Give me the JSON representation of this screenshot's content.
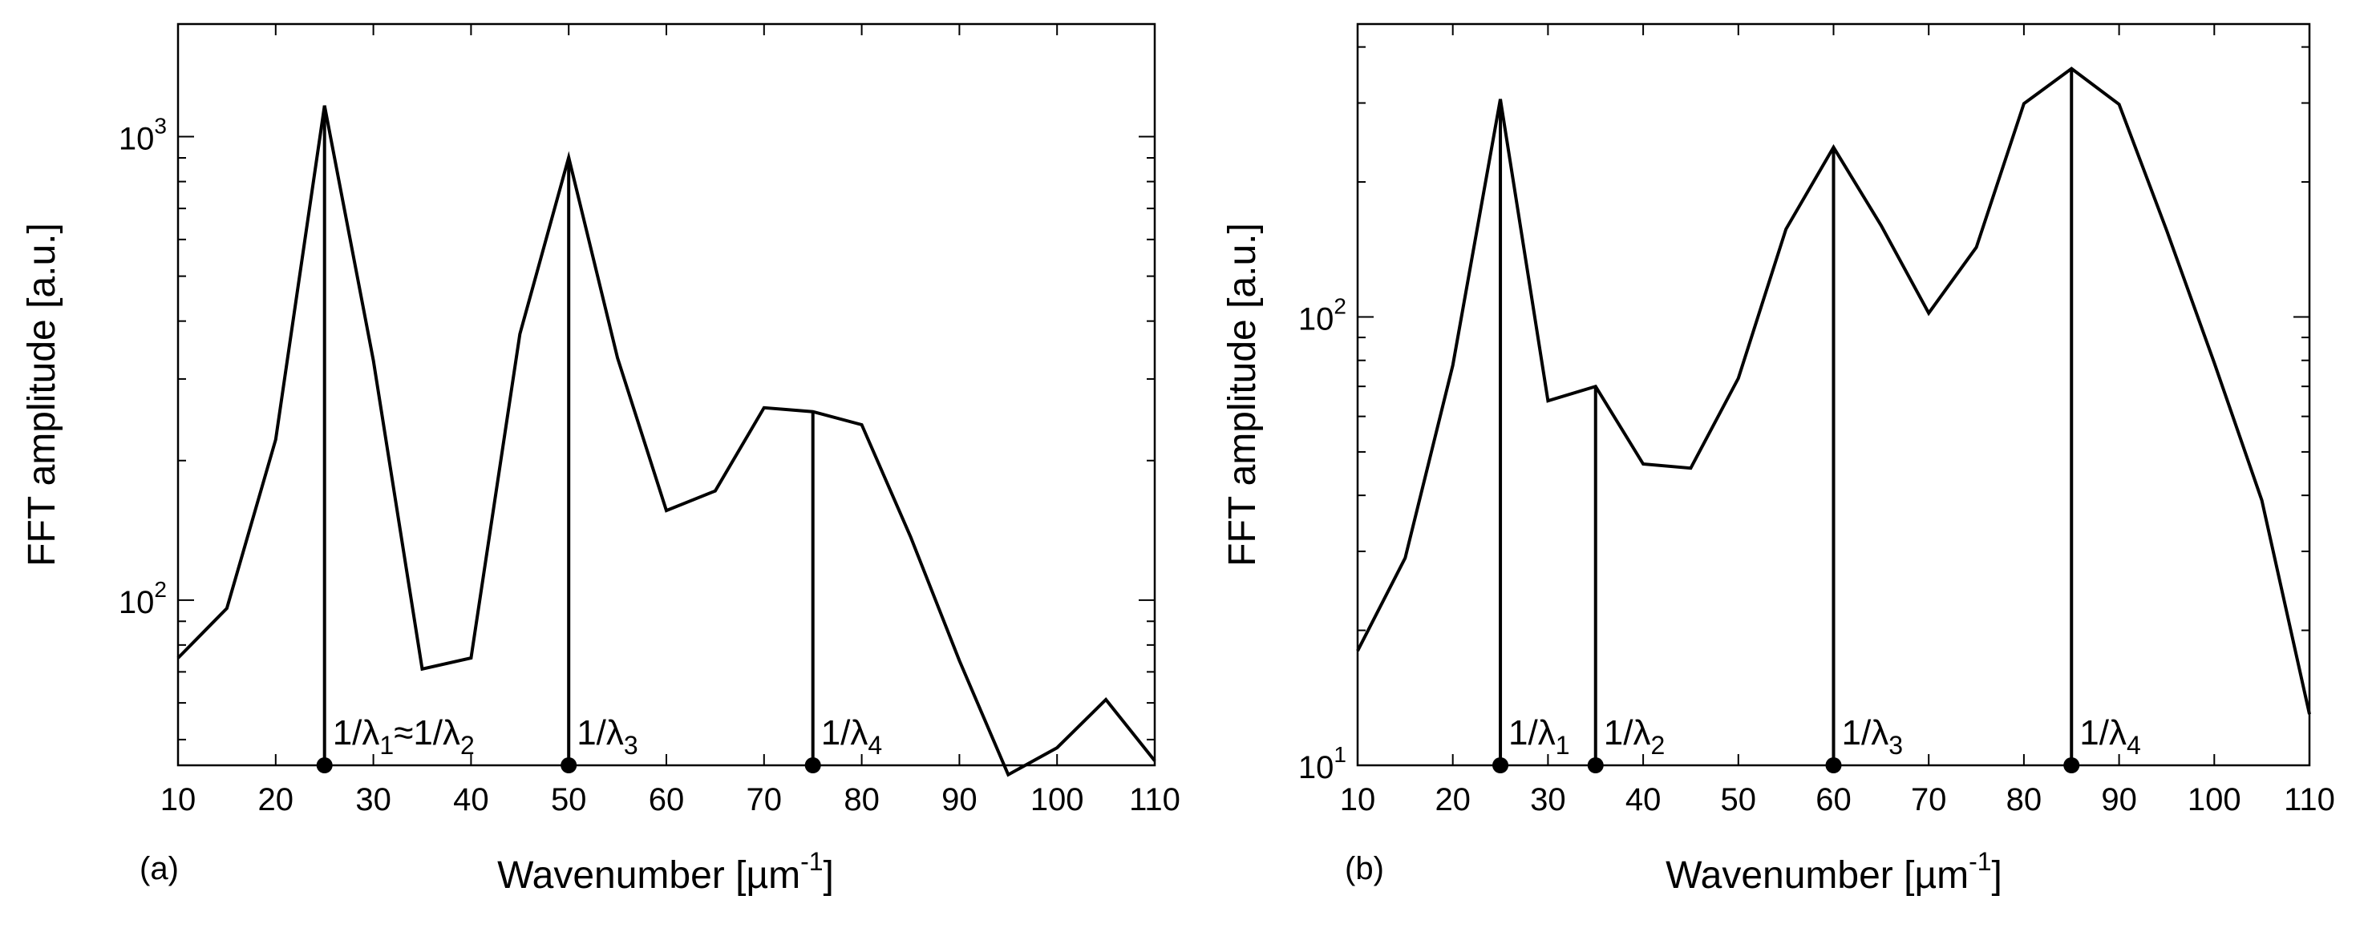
{
  "chart_data": [
    {
      "panel": "(a)",
      "type": "line",
      "yscale": "log",
      "xlabel": {
        "text": "Wavenumber [µm",
        "sup": "-1",
        "close": "]"
      },
      "ylabel": "FFT amplitude [a.u.]",
      "xlim": [
        10,
        110
      ],
      "ylim": [
        44,
        1750
      ],
      "xticks": [
        10,
        20,
        30,
        40,
        50,
        60,
        70,
        80,
        90,
        100,
        110
      ],
      "yticks": [
        {
          "value": 100,
          "base": "10",
          "exp": "2"
        },
        {
          "value": 1000,
          "base": "10",
          "exp": "3"
        }
      ],
      "series": [
        {
          "name": "FFT amplitude",
          "x": [
            10,
            15,
            20,
            25,
            30,
            35,
            40,
            45,
            50,
            55,
            60,
            65,
            70,
            75,
            80,
            85,
            90,
            95,
            100,
            105,
            110
          ],
          "y": [
            75,
            96,
            222,
            1167,
            329,
            71,
            75,
            375,
            902,
            333,
            156,
            172,
            260,
            255,
            239,
            137,
            74,
            42,
            48,
            61,
            45
          ]
        }
      ],
      "peaks": [
        {
          "x": 25,
          "y": 1167,
          "label": {
            "a": "1/λ",
            "asub": "1",
            "mid": "≈1/λ",
            "bsub": "2"
          }
        },
        {
          "x": 50,
          "y": 902,
          "label": {
            "a": "1/λ",
            "asub": "3"
          }
        },
        {
          "x": 75,
          "y": 255,
          "label": {
            "a": "1/λ",
            "asub": "4"
          }
        }
      ]
    },
    {
      "panel": "(b)",
      "type": "line",
      "yscale": "log",
      "xlabel": {
        "text": "Wavenumber [µm",
        "sup": "-1",
        "close": "]"
      },
      "ylabel": "FFT amplitude [a.u.]",
      "xlim": [
        10,
        110
      ],
      "ylim": [
        10,
        450
      ],
      "xticks": [
        10,
        20,
        30,
        40,
        50,
        60,
        70,
        80,
        90,
        100,
        110
      ],
      "yticks": [
        {
          "value": 10,
          "base": "10",
          "exp": "1"
        },
        {
          "value": 100,
          "base": "10",
          "exp": "2"
        }
      ],
      "series": [
        {
          "name": "FFT amplitude",
          "x": [
            10,
            15,
            20,
            25,
            30,
            35,
            40,
            45,
            50,
            55,
            60,
            65,
            70,
            75,
            80,
            85,
            90,
            95,
            100,
            105,
            110
          ],
          "y": [
            18,
            29,
            78,
            306,
            65,
            70,
            47,
            46,
            73,
            157,
            239,
            160,
            102,
            143,
            299,
            358,
            298,
            156,
            79,
            39,
            13
          ]
        }
      ],
      "peaks": [
        {
          "x": 25,
          "y": 306,
          "label": {
            "a": "1/λ",
            "asub": "1"
          }
        },
        {
          "x": 35,
          "y": 70,
          "label": {
            "a": "1/λ",
            "asub": "2"
          }
        },
        {
          "x": 60,
          "y": 239,
          "label": {
            "a": "1/λ",
            "asub": "3"
          }
        },
        {
          "x": 85,
          "y": 358,
          "label": {
            "a": "1/λ",
            "asub": "4"
          }
        }
      ]
    }
  ]
}
